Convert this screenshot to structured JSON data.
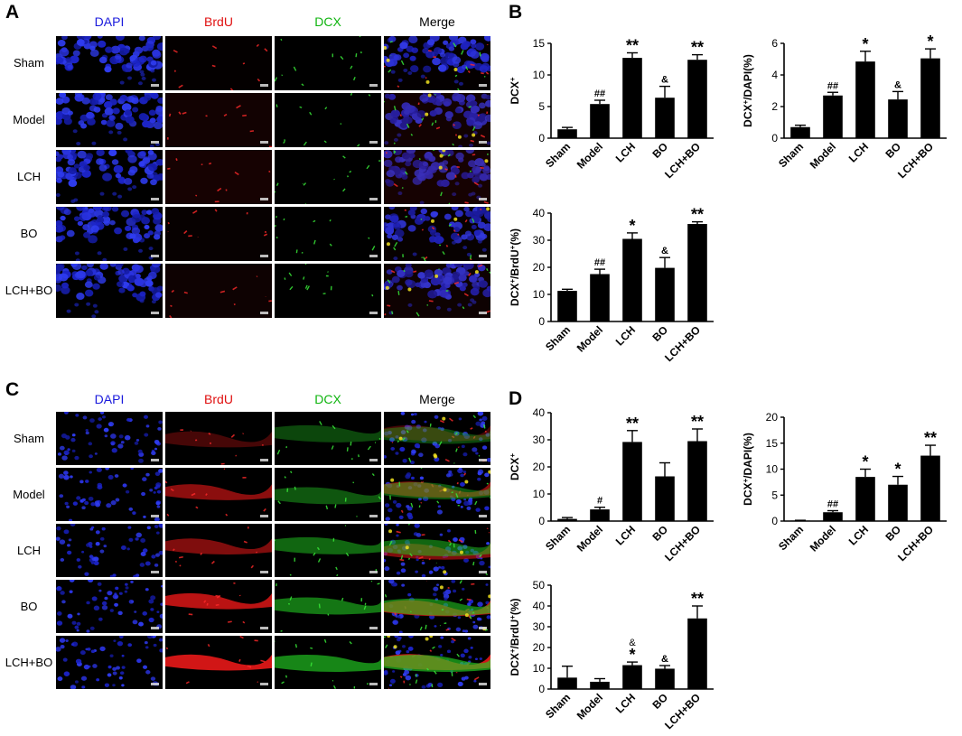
{
  "panels": {
    "A": {
      "letter": "A"
    },
    "B": {
      "letter": "B"
    },
    "C": {
      "letter": "C"
    },
    "D": {
      "letter": "D"
    }
  },
  "image_grids": [
    {
      "id": "A",
      "columns": [
        "DAPI",
        "BrdU",
        "DCX",
        "Merge"
      ],
      "column_colors": [
        "#1a1adc",
        "#e01010",
        "#0fb40f",
        "#000000"
      ],
      "rows": [
        "Sham",
        "Model",
        "LCH",
        "BO",
        "LCH+BO"
      ]
    },
    {
      "id": "C",
      "columns": [
        "DAPI",
        "BrdU",
        "DCX",
        "Merge"
      ],
      "column_colors": [
        "#1a1adc",
        "#e01010",
        "#0fb40f",
        "#000000"
      ],
      "rows": [
        "Sham",
        "Model",
        "LCH",
        "BO",
        "LCH+BO"
      ]
    }
  ],
  "chart_data": [
    {
      "id": "B1",
      "type": "bar",
      "categories": [
        "Sham",
        "Model",
        "LCH",
        "BO",
        "LCH+BO"
      ],
      "values": [
        1.4,
        5.4,
        12.7,
        6.4,
        12.4
      ],
      "errors": [
        0.3,
        0.6,
        0.8,
        1.8,
        0.8
      ],
      "annotations": [
        "",
        "##",
        "**",
        "&",
        "**"
      ],
      "ylabel_base": "DCX",
      "ylabel_sup": "+",
      "ylabel_rest": "",
      "ylim": [
        0,
        15
      ],
      "yticks": [
        "0",
        "5",
        "10",
        "15"
      ]
    },
    {
      "id": "B2",
      "type": "bar",
      "categories": [
        "Sham",
        "Model",
        "LCH",
        "BO",
        "LCH+BO"
      ],
      "values": [
        0.7,
        2.7,
        4.85,
        2.45,
        5.05
      ],
      "errors": [
        0.12,
        0.2,
        0.65,
        0.5,
        0.6
      ],
      "annotations": [
        "",
        "##",
        "*",
        "&",
        "*"
      ],
      "ylabel_base": "DCX",
      "ylabel_sup": "+",
      "ylabel_rest": "/DAPI(%)",
      "ylim": [
        0,
        6
      ],
      "yticks": [
        "0",
        "2",
        "4",
        "6"
      ]
    },
    {
      "id": "B3",
      "type": "bar",
      "categories": [
        "Sham",
        "Model",
        "LCH",
        "BO",
        "LCH+BO"
      ],
      "values": [
        11.3,
        17.5,
        30.5,
        19.8,
        36.0
      ],
      "errors": [
        0.6,
        1.8,
        2.2,
        3.8,
        0.8
      ],
      "annotations": [
        "",
        "##",
        "*",
        "&",
        "**"
      ],
      "ylabel_base": "DCX",
      "ylabel_sup": "+",
      "ylabel_rest": "/BrdU",
      "ylabel_sup2": "+",
      "ylabel_tail": "(%)",
      "ylim": [
        0,
        40
      ],
      "yticks": [
        "0",
        "10",
        "20",
        "30",
        "40"
      ]
    },
    {
      "id": "D1",
      "type": "bar",
      "categories": [
        "Sham",
        "Model",
        "LCH",
        "BO",
        "LCH+BO"
      ],
      "values": [
        0.8,
        4.3,
        29.2,
        16.5,
        29.5
      ],
      "errors": [
        0.5,
        0.8,
        4.2,
        5.0,
        4.5
      ],
      "annotations": [
        "",
        "#",
        "**",
        "",
        "**"
      ],
      "ylabel_base": "DCX",
      "ylabel_sup": "+",
      "ylabel_rest": "",
      "ylim": [
        0,
        40
      ],
      "yticks": [
        "0",
        "10",
        "20",
        "30",
        "40"
      ]
    },
    {
      "id": "D2",
      "type": "bar",
      "categories": [
        "Sham",
        "Model",
        "LCH",
        "BO",
        "LCH+BO"
      ],
      "values": [
        0.1,
        1.7,
        8.5,
        7.0,
        12.6
      ],
      "errors": [
        0.05,
        0.3,
        1.5,
        1.6,
        2.0
      ],
      "annotations": [
        "",
        "##",
        "*",
        "*",
        "**"
      ],
      "ylabel_base": "DCX",
      "ylabel_sup": "+",
      "ylabel_rest": "/DAPI(%)",
      "ylim": [
        0,
        20
      ],
      "yticks": [
        "0",
        "5",
        "10",
        "15",
        "20"
      ]
    },
    {
      "id": "D3",
      "type": "bar",
      "categories": [
        "Sham",
        "Model",
        "LCH",
        "BO",
        "LCH+BO"
      ],
      "values": [
        5.5,
        3.5,
        11.5,
        9.8,
        34.0
      ],
      "errors": [
        5.5,
        1.5,
        1.5,
        1.5,
        6.0
      ],
      "annotations": [
        "",
        "",
        "*",
        "&",
        "**"
      ],
      "annotations_top": [
        "",
        "",
        "&",
        "",
        ""
      ],
      "ylabel_base": "DCX",
      "ylabel_sup": "+",
      "ylabel_rest": "/BrdU",
      "ylabel_sup2": "+",
      "ylabel_tail": "(%)",
      "ylim": [
        0,
        50
      ],
      "yticks": [
        "0",
        "10",
        "20",
        "30",
        "40",
        "50"
      ]
    }
  ]
}
